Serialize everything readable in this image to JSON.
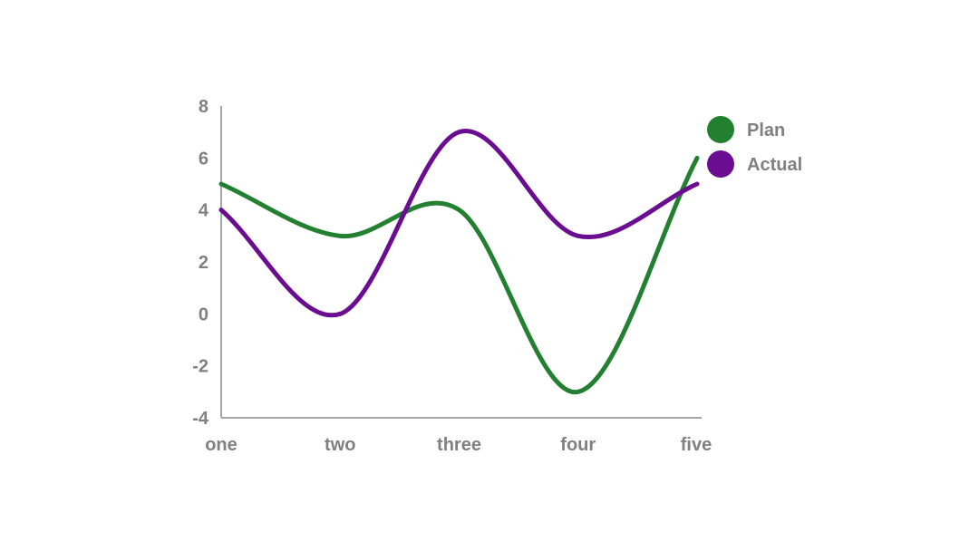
{
  "chart_data": {
    "type": "line",
    "smooth": true,
    "categories": [
      "one",
      "two",
      "three",
      "four",
      "five"
    ],
    "series": [
      {
        "name": "Plan",
        "values": [
          5,
          3,
          4,
          -3,
          6
        ],
        "color": "#238031"
      },
      {
        "name": "Actual",
        "values": [
          4,
          0,
          7,
          3,
          5
        ],
        "color": "#6a0d91"
      }
    ],
    "ylim": [
      -4,
      8
    ],
    "yticks": [
      -4,
      -2,
      0,
      2,
      4,
      6,
      8
    ],
    "grid": false,
    "legend": "top-right",
    "axis_color": "#a6a6a6",
    "label_color": "#808080"
  }
}
